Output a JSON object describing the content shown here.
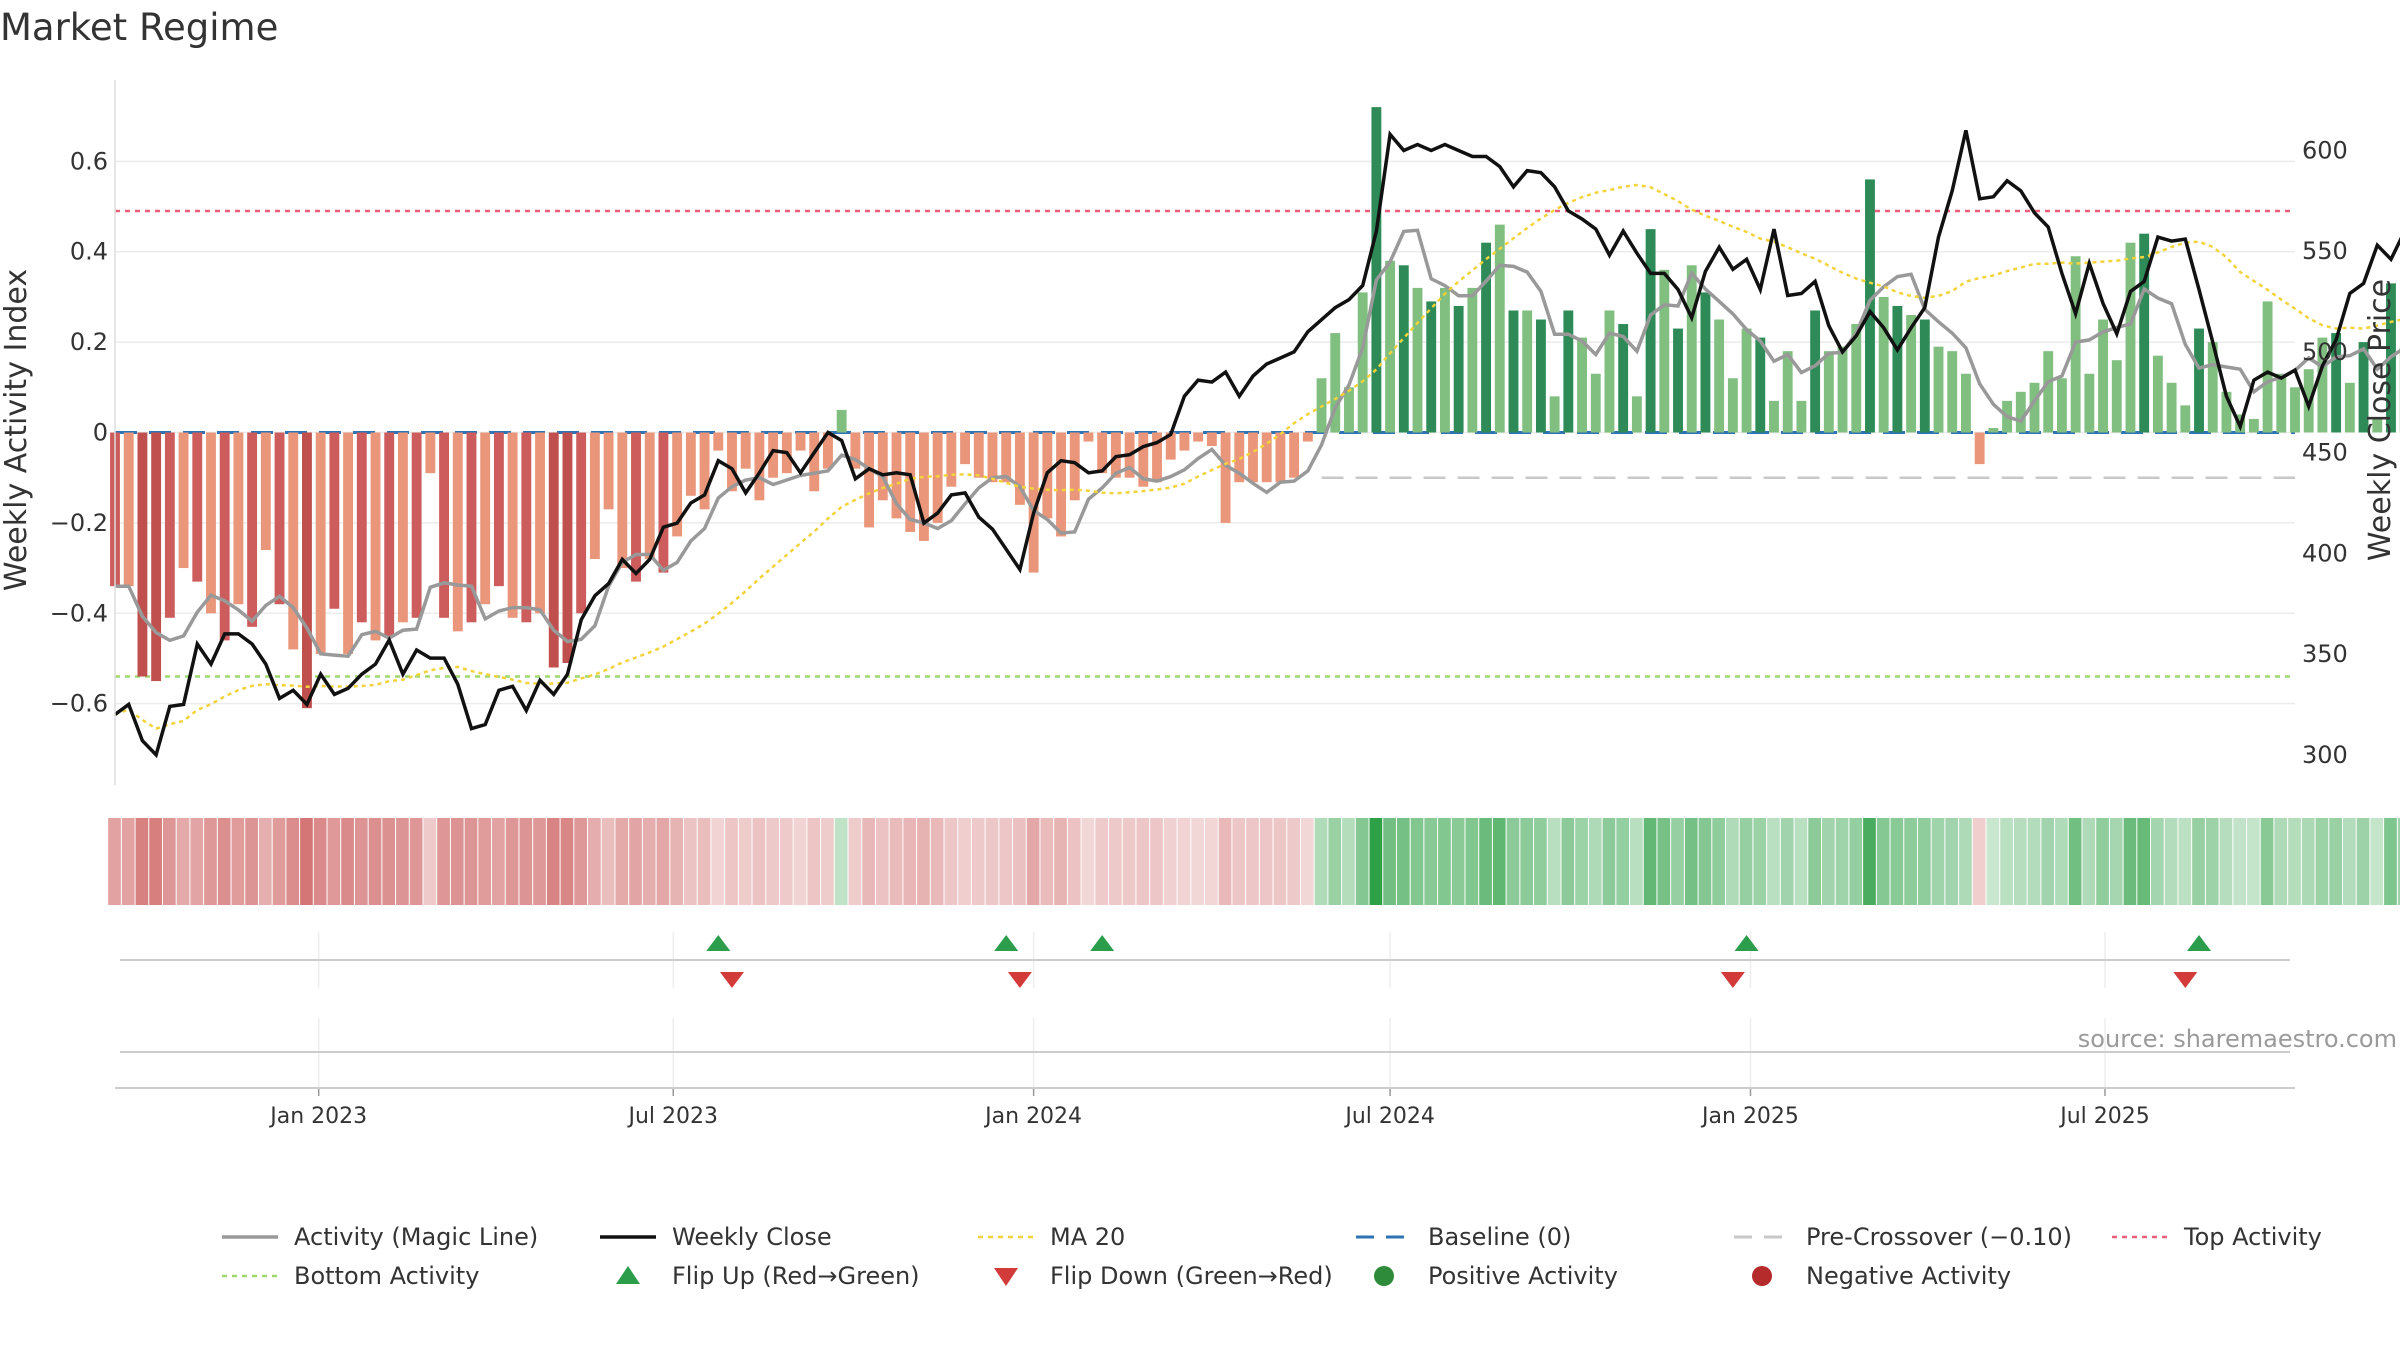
{
  "page": {
    "title": "Market Regime"
  },
  "chart_data": {
    "type": "bar",
    "title": "Market Regime",
    "source": "source: sharemaestro.com",
    "x_range": [
      "2022-09-19",
      "2025-10-06"
    ],
    "x_ticks": [
      "Jan 2023",
      "Jul 2023",
      "Jan 2024",
      "Jul 2024",
      "Jan 2025",
      "Jul 2025"
    ],
    "y_left": {
      "label": "Weekly Activity Index",
      "range": [
        -0.78,
        0.78
      ],
      "ticks": [
        -0.6,
        -0.4,
        -0.2,
        0,
        0.2,
        0.4,
        0.6
      ],
      "tick_labels": [
        "−0.6",
        "−0.4",
        "−0.2",
        "0",
        "0.2",
        "0.4",
        "0.6"
      ]
    },
    "y_right": {
      "label": "Weekly Close Price",
      "range": [
        285,
        635
      ],
      "ticks": [
        300,
        350,
        400,
        450,
        500,
        550,
        600
      ],
      "tick_labels": [
        "300",
        "350",
        "400",
        "450",
        "500",
        "550",
        "600"
      ]
    },
    "reference_lines": {
      "baseline": 0,
      "pre_crossover": -0.1,
      "top_activity": 0.49,
      "bottom_activity": -0.54
    },
    "activity_bars": [
      -0.34,
      -0.34,
      -0.54,
      -0.55,
      -0.41,
      -0.3,
      -0.33,
      -0.4,
      -0.46,
      -0.38,
      -0.43,
      -0.26,
      -0.38,
      -0.48,
      -0.61,
      -0.49,
      -0.39,
      -0.49,
      -0.42,
      -0.46,
      -0.45,
      -0.42,
      -0.41,
      -0.09,
      -0.41,
      -0.44,
      -0.42,
      -0.38,
      -0.34,
      -0.41,
      -0.42,
      -0.4,
      -0.52,
      -0.51,
      -0.4,
      -0.28,
      -0.17,
      -0.3,
      -0.33,
      -0.28,
      -0.31,
      -0.23,
      -0.14,
      -0.17,
      -0.04,
      -0.13,
      -0.08,
      -0.15,
      -0.1,
      -0.09,
      -0.04,
      -0.13,
      -0.08,
      0.05,
      -0.08,
      -0.21,
      -0.15,
      -0.19,
      -0.22,
      -0.24,
      -0.2,
      -0.12,
      -0.07,
      -0.1,
      -0.11,
      -0.11,
      -0.16,
      -0.31,
      -0.19,
      -0.23,
      -0.15,
      -0.02,
      -0.09,
      -0.1,
      -0.1,
      -0.12,
      -0.11,
      -0.06,
      -0.04,
      -0.02,
      -0.03,
      -0.2,
      -0.11,
      -0.11,
      -0.11,
      -0.11,
      -0.1,
      -0.02,
      0.12,
      0.22,
      0.1,
      0.31,
      0.72,
      0.38,
      0.37,
      0.32,
      0.29,
      0.32,
      0.28,
      0.32,
      0.42,
      0.46,
      0.27,
      0.27,
      0.25,
      0.08,
      0.27,
      0.21,
      0.13,
      0.27,
      0.24,
      0.08,
      0.45,
      0.36,
      0.23,
      0.37,
      0.31,
      0.25,
      0.12,
      0.23,
      0.21,
      0.07,
      0.18,
      0.07,
      0.27,
      0.18,
      0.19,
      0.24,
      0.56,
      0.3,
      0.28,
      0.26,
      0.25,
      0.19,
      0.18,
      0.13,
      -0.07,
      0.01,
      0.07,
      0.09,
      0.11,
      0.18,
      0.12,
      0.39,
      0.13,
      0.25,
      0.16,
      0.42,
      0.44,
      0.17,
      0.11,
      0.06,
      0.23,
      0.2,
      0.09,
      0.04,
      0.03,
      0.29,
      0.13,
      0.1,
      0.14,
      0.21,
      0.22,
      0.11,
      0.2,
      0.03,
      0.33,
      0.19,
      0.07,
      0.07,
      0.17,
      0.2,
      0.17,
      -0.03,
      0.08,
      0.04,
      0.38,
      0.07,
      0.07,
      0.06,
      0.12
    ],
    "weekly_close": [
      320,
      325,
      307,
      300,
      324,
      325,
      355,
      345,
      360,
      360,
      355,
      345,
      328,
      332,
      325,
      340,
      330,
      333,
      340,
      345,
      357,
      340,
      352,
      348,
      348,
      335,
      313,
      315,
      332,
      334,
      322,
      337,
      330,
      340,
      367,
      379,
      385,
      397,
      390,
      397,
      413,
      415,
      425,
      429,
      446,
      442,
      430,
      440,
      451,
      450,
      440,
      450,
      460,
      456,
      437,
      442,
      439,
      440,
      439,
      415,
      420,
      429,
      430,
      418,
      412,
      402,
      392,
      420,
      440,
      446,
      445,
      440,
      441,
      448,
      449,
      453,
      455,
      459,
      478,
      486,
      485,
      490,
      478,
      488,
      494,
      497,
      500,
      510,
      516,
      522,
      526,
      533,
      560,
      608,
      600,
      603,
      600,
      603,
      600,
      597,
      597,
      592,
      582,
      590,
      589,
      582,
      570,
      566,
      561,
      548,
      560,
      549,
      539,
      539,
      531,
      517,
      540,
      552,
      541,
      546,
      531,
      561,
      528,
      529,
      535,
      513,
      500,
      508,
      520,
      512,
      501,
      512,
      522,
      557,
      580,
      610,
      576,
      577,
      585,
      580,
      569,
      562,
      539,
      519,
      544,
      524,
      509,
      530,
      535,
      557,
      555,
      556,
      531,
      505,
      478,
      463,
      486,
      490,
      487,
      491,
      473,
      493,
      506,
      529,
      534,
      553,
      546,
      560,
      559,
      551,
      561,
      557,
      546,
      568,
      570,
      557,
      575,
      580,
      583,
      600,
      601,
      603,
      607,
      614,
      609,
      613
    ]
  },
  "regime_strip": {
    "label": "regime heatmap"
  },
  "flip_markers": {
    "up": [
      "2023-07-24",
      "2023-12-18",
      "2024-02-05",
      "2024-12-30",
      "2025-08-18"
    ],
    "down": [
      "2023-07-31",
      "2023-12-25",
      "2024-12-23",
      "2025-08-11"
    ]
  },
  "legend": {
    "items": [
      {
        "label": "Activity (Magic Line)",
        "kind": "line",
        "color": "#999999"
      },
      {
        "label": "Weekly Close",
        "kind": "line",
        "color": "#111111"
      },
      {
        "label": "MA 20",
        "kind": "dotted",
        "color": "#f2d33b"
      },
      {
        "label": "Baseline (0)",
        "kind": "dashed",
        "color": "#2f73b5"
      },
      {
        "label": "Pre-Crossover (−0.10)",
        "kind": "dashed",
        "color": "#c8c8c8"
      },
      {
        "label": "Top Activity",
        "kind": "dotted",
        "color": "#e8607a"
      },
      {
        "label": "Bottom Activity",
        "kind": "dotted",
        "color": "#9fd86f"
      },
      {
        "label": "Flip Up (Red→Green)",
        "kind": "tri-up",
        "color": "#2c9e4b"
      },
      {
        "label": "Flip Down (Green→Red)",
        "kind": "tri-down",
        "color": "#d33a3a"
      },
      {
        "label": "Positive Activity",
        "kind": "dot",
        "color": "#2e8b3a"
      },
      {
        "label": "Negative Activity",
        "kind": "dot",
        "color": "#b52a2a"
      }
    ]
  },
  "colors": {
    "pos_strong": "#2e8b57",
    "pos_light": "#80bf80",
    "neg_strong": "#cd5c5c",
    "neg_light": "#e9967a"
  }
}
